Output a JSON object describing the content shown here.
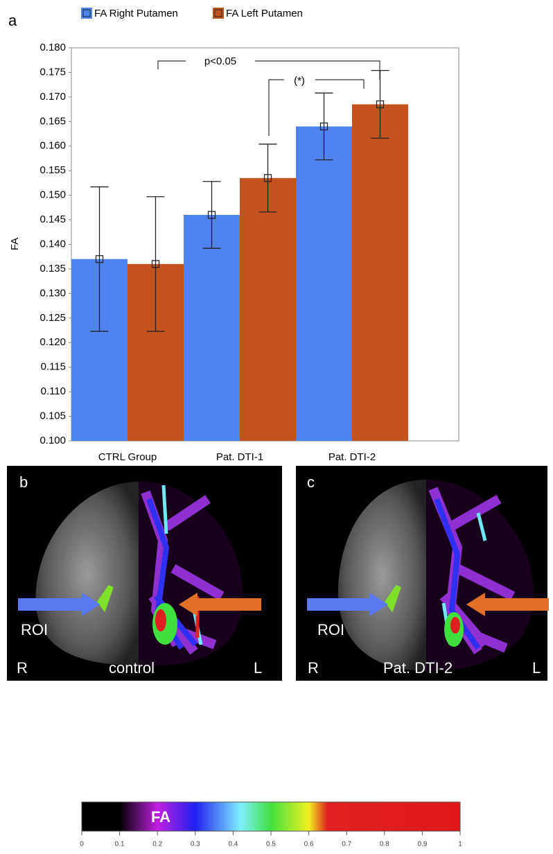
{
  "chart_data": {
    "type": "bar",
    "panel_label": "a",
    "ylabel": "FA",
    "categories": [
      "CTRL Group",
      "Pat. DTI-1",
      "Pat. DTI-2"
    ],
    "series": [
      {
        "name": "FA Right Putamen",
        "color": "#4f84ee",
        "values": [
          0.137,
          0.146,
          0.164
        ],
        "errors": [
          0.0147,
          0.0068,
          0.0068
        ]
      },
      {
        "name": "FA Left Putamen",
        "color": "#c2521e",
        "values": [
          0.136,
          0.1535,
          0.1685
        ],
        "errors": [
          0.0137,
          0.0069,
          0.0069
        ]
      }
    ],
    "ylim": [
      0.1,
      0.18
    ],
    "yticks": [
      {
        "value": 0.1,
        "label": "0.100"
      },
      {
        "value": 0.105,
        "label": "0.105"
      },
      {
        "value": 0.11,
        "label": "0.110"
      },
      {
        "value": 0.115,
        "label": "0.115"
      },
      {
        "value": 0.12,
        "label": "0.120"
      },
      {
        "value": 0.125,
        "label": "0.125"
      },
      {
        "value": 0.13,
        "label": "0.130"
      },
      {
        "value": 0.135,
        "label": "0.135"
      },
      {
        "value": 0.14,
        "label": "0.140"
      },
      {
        "value": 0.145,
        "label": "0.145"
      },
      {
        "value": 0.15,
        "label": "0.150"
      },
      {
        "value": 0.155,
        "label": "0.155"
      },
      {
        "value": 0.16,
        "label": "0.160"
      },
      {
        "value": 0.165,
        "label": "0.165"
      },
      {
        "value": 0.17,
        "label": "0.170"
      },
      {
        "value": 0.175,
        "label": "0.175"
      },
      {
        "value": 0.18,
        "label": "0.180"
      }
    ],
    "annotations": [
      "p<0.05",
      "(*)"
    ]
  },
  "panels": [
    {
      "label": "b",
      "roi": "ROI",
      "right": "R",
      "caption": "control",
      "left": "L"
    },
    {
      "label": "c",
      "roi": "ROI",
      "right": "R",
      "caption": "Pat. DTI-2",
      "left": "L"
    }
  ],
  "colorbar": {
    "label": "FA",
    "ticks": [
      0,
      0.1,
      0.2,
      0.3,
      0.4,
      0.5,
      0.6,
      0.7,
      0.8,
      0.9,
      1
    ]
  }
}
